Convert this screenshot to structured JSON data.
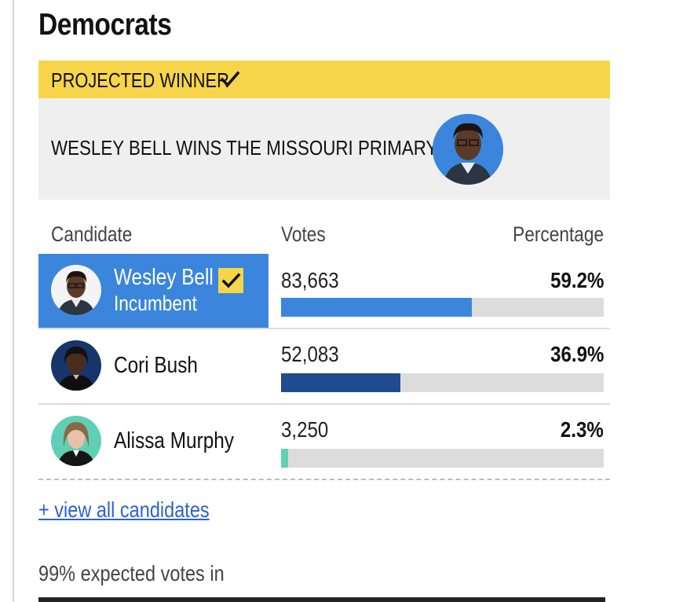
{
  "party_title": "Democrats",
  "winner": {
    "banner_label": "PROJECTED WINNER",
    "headline": "WESLEY BELL WINS THE MISSOURI PRIMARY"
  },
  "columns": {
    "candidate": "Candidate",
    "votes": "Votes",
    "percentage": "Percentage"
  },
  "candidates": [
    {
      "name": "Wesley Bell",
      "status": "Incumbent",
      "votes": "83,663",
      "percentage": "59.2%",
      "share": 0.592,
      "color": "#3b86dc",
      "winner": true
    },
    {
      "name": "Cori Bush",
      "status": "",
      "votes": "52,083",
      "percentage": "36.9%",
      "share": 0.369,
      "color": "#1f4c8f",
      "winner": false
    },
    {
      "name": "Alissa Murphy",
      "status": "",
      "votes": "3,250",
      "percentage": "2.3%",
      "share": 0.023,
      "color": "#5fd0b5",
      "winner": false
    }
  ],
  "view_all_link": "+ view all candidates",
  "expected_votes": "99% expected votes in",
  "colors": {
    "accent_yellow": "#f7d54a",
    "winner_blue": "#3b86dc",
    "link_blue": "#2b62d1"
  }
}
